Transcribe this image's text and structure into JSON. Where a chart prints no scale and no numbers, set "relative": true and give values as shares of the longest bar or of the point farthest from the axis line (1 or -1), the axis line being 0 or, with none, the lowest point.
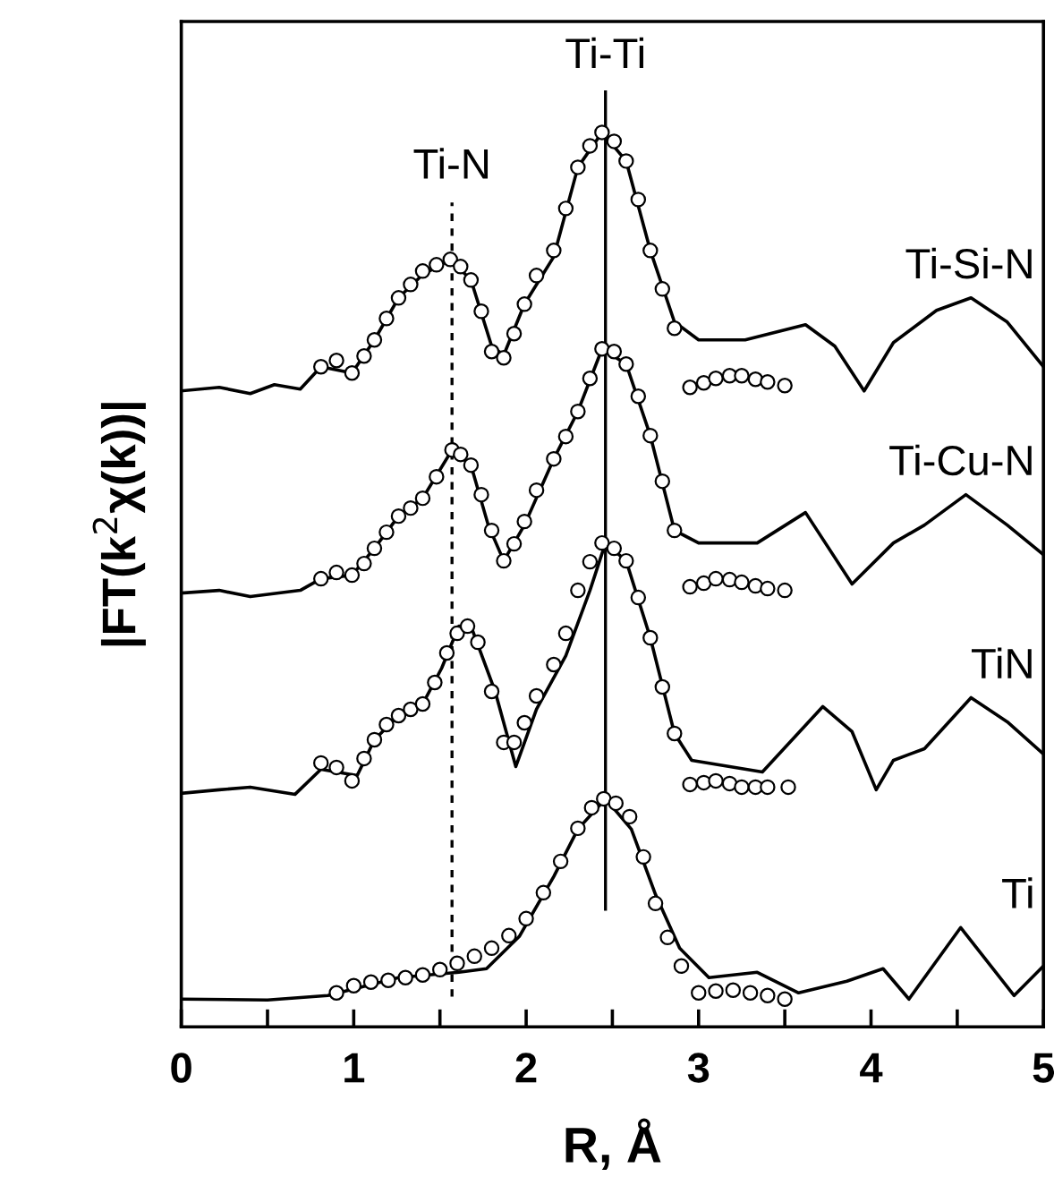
{
  "chart_data": {
    "type": "line",
    "relative": true,
    "xlabel": "R, Å",
    "ylabel": "|FT(k$^{2}$χ(k))|",
    "xlim": [
      0,
      5
    ],
    "xticks": [
      0,
      {
        "value": 0.5,
        "label": null
      },
      1,
      {
        "value": 1.5,
        "label": null
      },
      2,
      {
        "value": 2.5,
        "label": null
      },
      3,
      {
        "value": 3.5,
        "label": null
      },
      4,
      {
        "value": 4.5,
        "label": null
      },
      5
    ],
    "tick_labels": "x",
    "grid": false,
    "legend": false,
    "ref_lines": [
      {
        "axis": "x",
        "value": 1.57,
        "label": "Ti-N",
        "line_style": "dashed",
        "color": "#000000"
      },
      {
        "axis": "x",
        "value": 2.46,
        "label": "Ti-Ti",
        "line_style": "solid",
        "color": "#000000"
      }
    ],
    "series": [
      {
        "name": "Ti-Si-N",
        "color": "#000000",
        "x": [
          0,
          0.22,
          0.4,
          0.54,
          0.69,
          0.81,
          0.99,
          1.12,
          1.26,
          1.4,
          1.56,
          1.68,
          1.8,
          1.87,
          1.99,
          2.16,
          2.3,
          2.44,
          2.58,
          2.72,
          2.86,
          3.0,
          3.27,
          3.62,
          3.79,
          3.96,
          4.13,
          4.38,
          4.58,
          4.79,
          5.0
        ],
        "values": [
          0.711,
          0.715,
          0.708,
          0.718,
          0.713,
          0.738,
          0.731,
          0.768,
          0.815,
          0.841,
          0.858,
          0.835,
          0.761,
          0.751,
          0.808,
          0.861,
          0.961,
          1.0,
          0.968,
          0.868,
          0.788,
          0.768,
          0.768,
          0.785,
          0.761,
          0.711,
          0.765,
          0.801,
          0.815,
          0.788,
          0.738
        ]
      },
      {
        "type": "scatter",
        "marker": "circle",
        "color": "#000000",
        "x": [
          0.81,
          0.9,
          0.99,
          1.06,
          1.12,
          1.19,
          1.26,
          1.33,
          1.4,
          1.48,
          1.56,
          1.62,
          1.68,
          1.74,
          1.8,
          1.87,
          1.93,
          1.99,
          2.06,
          2.16,
          2.23,
          2.3,
          2.37,
          2.44,
          2.51,
          2.58,
          2.65,
          2.72,
          2.79,
          2.86,
          2.95,
          3.03,
          3.1,
          3.18,
          3.25,
          3.33,
          3.4,
          3.5
        ],
        "values": [
          0.738,
          0.745,
          0.731,
          0.75,
          0.768,
          0.792,
          0.815,
          0.83,
          0.845,
          0.852,
          0.858,
          0.85,
          0.835,
          0.8,
          0.755,
          0.748,
          0.775,
          0.808,
          0.84,
          0.868,
          0.915,
          0.961,
          0.985,
          1.0,
          0.99,
          0.968,
          0.925,
          0.868,
          0.825,
          0.781,
          0.715,
          0.72,
          0.725,
          0.728,
          0.728,
          0.724,
          0.721,
          0.717
        ]
      },
      {
        "name": "Ti-Cu-N",
        "color": "#000000",
        "x": [
          0,
          0.22,
          0.4,
          0.69,
          0.81,
          0.99,
          1.12,
          1.26,
          1.4,
          1.57,
          1.68,
          1.78,
          1.87,
          1.99,
          2.16,
          2.3,
          2.44,
          2.58,
          2.72,
          2.86,
          3.0,
          3.34,
          3.62,
          3.89,
          4.13,
          4.31,
          4.55,
          4.79,
          5.0
        ],
        "values": [
          0.485,
          0.488,
          0.481,
          0.488,
          0.501,
          0.505,
          0.535,
          0.571,
          0.591,
          0.645,
          0.628,
          0.561,
          0.521,
          0.561,
          0.635,
          0.688,
          0.758,
          0.741,
          0.661,
          0.555,
          0.541,
          0.541,
          0.575,
          0.495,
          0.541,
          0.561,
          0.595,
          0.561,
          0.528
        ]
      },
      {
        "type": "scatter",
        "marker": "circle",
        "color": "#000000",
        "x": [
          0.81,
          0.9,
          0.99,
          1.06,
          1.12,
          1.19,
          1.26,
          1.33,
          1.4,
          1.48,
          1.57,
          1.62,
          1.68,
          1.74,
          1.8,
          1.87,
          1.93,
          1.99,
          2.06,
          2.16,
          2.23,
          2.3,
          2.37,
          2.44,
          2.51,
          2.58,
          2.65,
          2.72,
          2.79,
          2.86,
          2.95,
          3.03,
          3.1,
          3.18,
          3.25,
          3.33,
          3.4,
          3.5
        ],
        "values": [
          0.501,
          0.508,
          0.505,
          0.518,
          0.535,
          0.553,
          0.571,
          0.58,
          0.591,
          0.615,
          0.645,
          0.64,
          0.628,
          0.595,
          0.555,
          0.521,
          0.54,
          0.565,
          0.6,
          0.635,
          0.66,
          0.688,
          0.725,
          0.758,
          0.755,
          0.741,
          0.705,
          0.661,
          0.61,
          0.555,
          0.492,
          0.496,
          0.501,
          0.5,
          0.497,
          0.493,
          0.49,
          0.488
        ]
      },
      {
        "name": "TiN",
        "color": "#000000",
        "x": [
          0,
          0.22,
          0.4,
          0.66,
          0.81,
          1.02,
          1.12,
          1.26,
          1.4,
          1.51,
          1.61,
          1.68,
          1.82,
          1.94,
          2.06,
          2.23,
          2.37,
          2.46,
          2.58,
          2.72,
          2.86,
          2.96,
          3.37,
          3.72,
          3.89,
          4.03,
          4.13,
          4.31,
          4.58,
          4.79,
          5.0
        ],
        "values": [
          0.261,
          0.265,
          0.268,
          0.26,
          0.288,
          0.281,
          0.321,
          0.348,
          0.361,
          0.401,
          0.448,
          0.448,
          0.375,
          0.291,
          0.355,
          0.415,
          0.488,
          0.541,
          0.521,
          0.435,
          0.328,
          0.298,
          0.285,
          0.358,
          0.33,
          0.265,
          0.298,
          0.311,
          0.368,
          0.341,
          0.305
        ]
      },
      {
        "type": "scatter",
        "marker": "circle",
        "color": "#000000",
        "x": [
          0.81,
          0.9,
          0.99,
          1.06,
          1.12,
          1.19,
          1.26,
          1.33,
          1.4,
          1.47,
          1.54,
          1.6,
          1.66,
          1.72,
          1.8,
          1.87,
          1.93,
          1.99,
          2.06,
          2.16,
          2.23,
          2.3,
          2.37,
          2.44,
          2.51,
          2.58,
          2.65,
          2.72,
          2.79,
          2.86,
          2.95,
          3.03,
          3.1,
          3.18,
          3.25,
          3.33,
          3.4,
          3.52
        ],
        "values": [
          0.295,
          0.29,
          0.275,
          0.3,
          0.321,
          0.338,
          0.348,
          0.355,
          0.361,
          0.385,
          0.418,
          0.44,
          0.448,
          0.43,
          0.375,
          0.318,
          0.318,
          0.34,
          0.37,
          0.405,
          0.44,
          0.488,
          0.52,
          0.541,
          0.535,
          0.521,
          0.48,
          0.435,
          0.38,
          0.328,
          0.271,
          0.273,
          0.275,
          0.272,
          0.268,
          0.268,
          0.268,
          0.268
        ]
      },
      {
        "name": "Ti",
        "color": "#000000",
        "x": [
          0,
          0.5,
          0.85,
          1.26,
          1.61,
          1.77,
          1.96,
          2.16,
          2.3,
          2.46,
          2.61,
          2.75,
          2.89,
          3.06,
          3.34,
          3.58,
          3.86,
          4.07,
          4.22,
          4.52,
          4.83,
          5.0
        ],
        "values": [
          0.031,
          0.03,
          0.035,
          0.055,
          0.061,
          0.065,
          0.101,
          0.168,
          0.221,
          0.255,
          0.221,
          0.148,
          0.088,
          0.055,
          0.061,
          0.038,
          0.051,
          0.065,
          0.031,
          0.111,
          0.035,
          0.068
        ]
      },
      {
        "type": "scatter",
        "marker": "circle",
        "color": "#000000",
        "x": [
          0.9,
          1.0,
          1.1,
          1.2,
          1.3,
          1.4,
          1.5,
          1.6,
          1.7,
          1.8,
          1.9,
          2.0,
          2.1,
          2.2,
          2.3,
          2.38,
          2.45,
          2.52,
          2.6,
          2.68,
          2.75,
          2.82,
          2.9,
          3.0,
          3.1,
          3.2,
          3.3,
          3.4,
          3.5
        ],
        "values": [
          0.038,
          0.046,
          0.05,
          0.052,
          0.055,
          0.058,
          0.064,
          0.071,
          0.079,
          0.088,
          0.102,
          0.121,
          0.15,
          0.185,
          0.222,
          0.245,
          0.255,
          0.25,
          0.235,
          0.19,
          0.138,
          0.1,
          0.068,
          0.038,
          0.04,
          0.041,
          0.038,
          0.035,
          0.031
        ]
      }
    ]
  }
}
